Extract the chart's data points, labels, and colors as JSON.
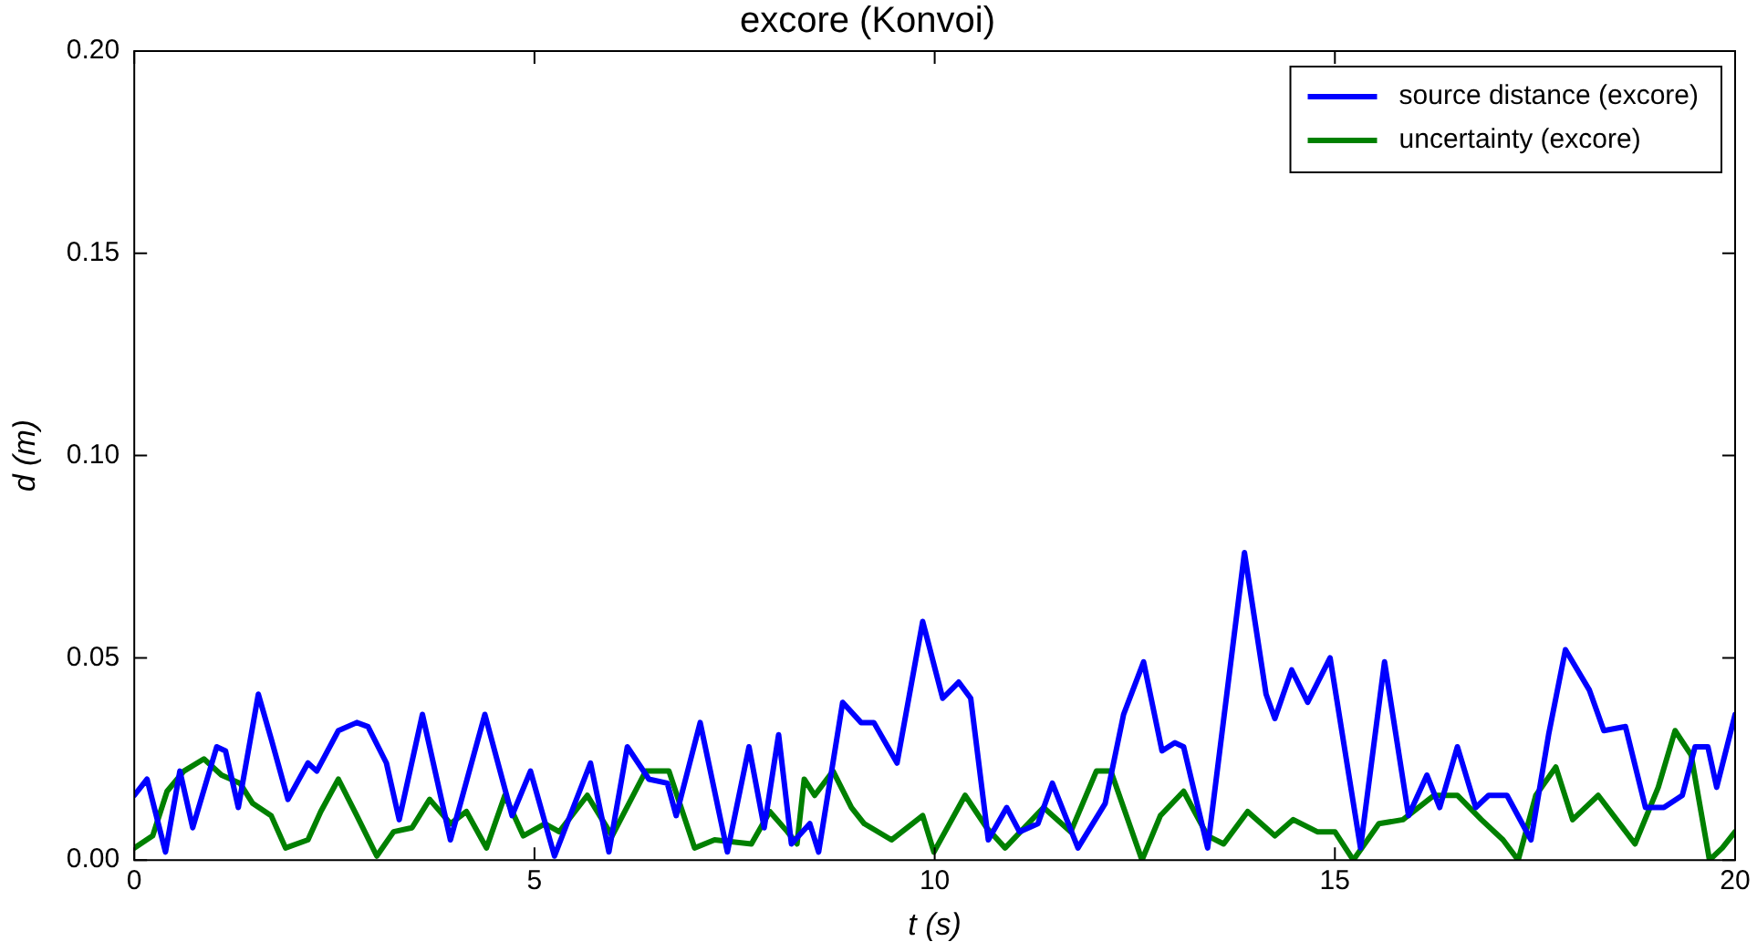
{
  "chart_data": {
    "type": "line",
    "title": "excore (Konvoi)",
    "xlabel": "t (s)",
    "ylabel": "d (m)",
    "xlim": [
      0,
      20
    ],
    "xticks": [
      0,
      5,
      10,
      15,
      20
    ],
    "ylim": [
      0,
      0.2
    ],
    "yticks": [
      {
        "value": 0,
        "label": "0.00"
      },
      {
        "value": 0.05,
        "label": "0.05"
      },
      {
        "value": 0.1,
        "label": "0.10"
      },
      {
        "value": 0.15,
        "label": "0.15"
      },
      {
        "value": 0.2,
        "label": "0.20"
      }
    ],
    "grid": false,
    "legend": "top right",
    "marker": "none",
    "line_style": "solid",
    "series": [
      {
        "name": "source distance (excore)",
        "color": "#0000ff",
        "x": [
          0,
          0.16,
          0.39,
          0.57,
          0.73,
          1.03,
          1.14,
          1.3,
          1.55,
          1.71,
          1.92,
          2.17,
          2.28,
          2.55,
          2.78,
          2.92,
          3.15,
          3.31,
          3.6,
          3.95,
          4.38,
          4.72,
          4.95,
          5.25,
          5.7,
          5.93,
          6.16,
          6.43,
          6.66,
          6.77,
          7.07,
          7.41,
          7.68,
          7.87,
          8.05,
          8.21,
          8.44,
          8.55,
          8.85,
          9.08,
          9.24,
          9.53,
          9.85,
          10.1,
          10.3,
          10.45,
          10.67,
          10.9,
          11.06,
          11.29,
          11.47,
          11.79,
          12.13,
          12.36,
          12.61,
          12.84,
          13.0,
          13.11,
          13.41,
          13.87,
          14.14,
          14.25,
          14.46,
          14.66,
          14.94,
          15.32,
          15.62,
          15.92,
          16.15,
          16.31,
          16.53,
          16.76,
          16.92,
          17.15,
          17.45,
          17.67,
          17.88,
          18.18,
          18.36,
          18.63,
          18.88,
          19.11,
          19.34,
          19.5,
          19.66,
          19.77,
          20
        ],
        "values": [
          0.016,
          0.02,
          0.002,
          0.022,
          0.008,
          0.028,
          0.027,
          0.013,
          0.041,
          0.03,
          0.015,
          0.024,
          0.022,
          0.032,
          0.034,
          0.033,
          0.024,
          0.01,
          0.036,
          0.005,
          0.036,
          0.011,
          0.022,
          0.001,
          0.024,
          0.002,
          0.028,
          0.02,
          0.019,
          0.011,
          0.034,
          0.002,
          0.028,
          0.008,
          0.031,
          0.004,
          0.009,
          0.002,
          0.039,
          0.034,
          0.034,
          0.024,
          0.059,
          0.04,
          0.044,
          0.04,
          0.005,
          0.013,
          0.007,
          0.009,
          0.019,
          0.003,
          0.014,
          0.036,
          0.049,
          0.027,
          0.029,
          0.028,
          0.003,
          0.076,
          0.041,
          0.035,
          0.047,
          0.039,
          0.05,
          0.003,
          0.049,
          0.011,
          0.021,
          0.013,
          0.028,
          0.013,
          0.016,
          0.016,
          0.005,
          0.031,
          0.052,
          0.042,
          0.032,
          0.033,
          0.013,
          0.013,
          0.016,
          0.028,
          0.028,
          0.018,
          0.036
        ]
      },
      {
        "name": "uncertainty (excore)",
        "color": "#008000",
        "x": [
          0,
          0.23,
          0.41,
          0.62,
          0.87,
          1.09,
          1.32,
          1.48,
          1.71,
          1.89,
          2.17,
          2.33,
          2.55,
          2.78,
          3.03,
          3.24,
          3.47,
          3.69,
          3.95,
          4.15,
          4.4,
          4.63,
          4.86,
          5.13,
          5.31,
          5.66,
          5.97,
          6.39,
          6.68,
          7.0,
          7.25,
          7.71,
          7.94,
          8.16,
          8.28,
          8.37,
          8.5,
          8.73,
          8.96,
          9.12,
          9.46,
          9.85,
          9.99,
          10.38,
          10.65,
          10.88,
          11.36,
          11.7,
          12.02,
          12.2,
          12.59,
          12.82,
          13.11,
          13.3,
          13.41,
          13.61,
          13.91,
          14.25,
          14.48,
          14.78,
          15.0,
          15.23,
          15.55,
          15.85,
          16.24,
          16.53,
          16.83,
          17.1,
          17.29,
          17.51,
          17.76,
          17.97,
          18.29,
          18.52,
          18.75,
          19.04,
          19.25,
          19.45,
          19.68,
          19.84,
          20
        ],
        "values": [
          0.003,
          0.006,
          0.017,
          0.022,
          0.025,
          0.021,
          0.019,
          0.014,
          0.011,
          0.003,
          0.005,
          0.012,
          0.02,
          0.011,
          0.001,
          0.007,
          0.008,
          0.015,
          0.009,
          0.012,
          0.003,
          0.016,
          0.006,
          0.009,
          0.007,
          0.016,
          0.006,
          0.022,
          0.022,
          0.003,
          0.005,
          0.004,
          0.012,
          0.007,
          0.004,
          0.02,
          0.016,
          0.022,
          0.013,
          0.009,
          0.005,
          0.011,
          0.002,
          0.016,
          0.008,
          0.003,
          0.013,
          0.007,
          0.022,
          0.022,
          0.0,
          0.011,
          0.017,
          0.01,
          0.006,
          0.004,
          0.012,
          0.006,
          0.01,
          0.007,
          0.007,
          0.0,
          0.009,
          0.01,
          0.016,
          0.016,
          0.01,
          0.005,
          0.0,
          0.016,
          0.023,
          0.01,
          0.016,
          0.01,
          0.004,
          0.018,
          0.032,
          0.026,
          0.0,
          0.003,
          0.007
        ]
      }
    ]
  }
}
